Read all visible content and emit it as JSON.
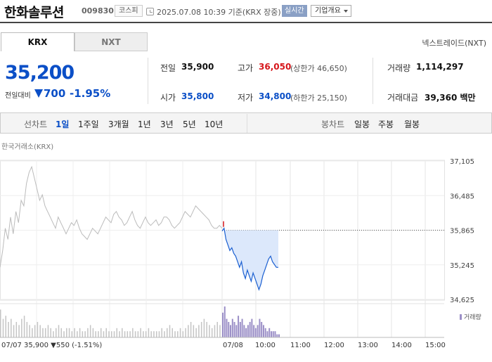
{
  "header": {
    "title": "한화솔루션",
    "code": "009830",
    "market": "코스피",
    "timestamp": "2025.07.08 10:39 기준(KRX 장중)",
    "realtime_label": "실시간",
    "company_label": "기업개요"
  },
  "tabs": [
    {
      "label": "KRX",
      "active": true
    },
    {
      "label": "NXT",
      "active": false
    }
  ],
  "nxt_link": "넥스트레이드(NXT)",
  "price": {
    "current": "35,200",
    "change_label": "전일대비",
    "change": "700",
    "change_pct": "-1.95%",
    "direction": "down"
  },
  "stats": {
    "prev_close": {
      "label": "전일",
      "value": "35,900"
    },
    "open": {
      "label": "시가",
      "value": "35,800"
    },
    "high": {
      "label": "고가",
      "value": "36,050",
      "sub": "(상한가 46,650)"
    },
    "low": {
      "label": "저가",
      "value": "34,800",
      "sub": "(하한가 25,150)"
    },
    "volume": {
      "label": "거래량",
      "value": "1,114,297"
    },
    "amount": {
      "label": "거래대금",
      "value": "39,360 백만"
    }
  },
  "toolbar": {
    "line_chart_label": "선차트",
    "periods": [
      "1일",
      "1주일",
      "3개월",
      "1년",
      "3년",
      "5년",
      "10년"
    ],
    "active_period": "1일",
    "candle_label": "봉차트",
    "candles": [
      "일봉",
      "주봉",
      "월봉"
    ]
  },
  "chart_data": {
    "type": "line",
    "source_label": "한국거래소(KRX)",
    "y_ticks": [
      "37,105",
      "36,485",
      "35,865",
      "35,245",
      "34,625"
    ],
    "ylim": [
      34625,
      37105
    ],
    "reference_line": 35865,
    "x_ticks": [
      "07/08",
      "10:00",
      "11:00",
      "12:00",
      "13:00",
      "14:00",
      "15:00"
    ],
    "prev_day_label": "07/07",
    "prev_day_summary": "35,900 ▼550 (-1.51%)",
    "volume_legend": "거래량",
    "prev_day_series": [
      35200,
      35500,
      35900,
      35700,
      36100,
      35800,
      36200,
      36000,
      36400,
      36300,
      36700,
      36900,
      37000,
      36800,
      36600,
      36400,
      36500,
      36300,
      36200,
      36100,
      36000,
      35900,
      36100,
      36000,
      35900,
      35800,
      35900,
      36000,
      35950,
      36050,
      35900,
      35800,
      35750,
      35700,
      35800,
      35900,
      35850,
      35800,
      35900,
      36000,
      36100,
      36050,
      36000,
      36150,
      36200,
      36100,
      36050,
      35950,
      36000,
      36100,
      36200,
      36050,
      35950,
      35900,
      36000,
      36100,
      36000,
      35950,
      36000,
      36050,
      35950,
      36000,
      36100,
      36100,
      36050,
      35950,
      35900,
      35950,
      36000,
      36100,
      36200,
      36150,
      36100,
      36200,
      36300,
      36250,
      36200,
      36150,
      36100,
      36050,
      35950,
      35900,
      35900,
      35950,
      35900
    ],
    "today_series": [
      35850,
      35900,
      35700,
      35600,
      35500,
      35550,
      35450,
      35400,
      35300,
      35200,
      35300,
      35100,
      35000,
      35150,
      35050,
      34950,
      35100,
      35000,
      34900,
      34800,
      34900,
      35050,
      35150,
      35250,
      35350,
      35400,
      35300,
      35250,
      35200,
      35200
    ],
    "today_volume": [
      8,
      10,
      6,
      5,
      4,
      6,
      5,
      4,
      7,
      5,
      6,
      4,
      3,
      4,
      5,
      6,
      4,
      3,
      4,
      6,
      5,
      4,
      3,
      2,
      3,
      2,
      2,
      2,
      1,
      1
    ],
    "prev_volume": [
      9,
      6,
      7,
      5,
      6,
      4,
      5,
      4,
      6,
      7,
      5,
      4,
      3,
      4,
      5,
      4,
      3,
      3,
      4,
      3,
      2,
      3,
      4,
      3,
      2,
      3,
      3,
      2,
      3,
      2,
      3,
      2,
      2,
      3,
      4,
      3,
      2,
      2,
      3,
      2,
      3,
      2,
      2,
      2,
      3,
      2,
      3,
      2,
      2,
      2,
      3,
      2,
      2,
      3,
      2,
      2,
      3,
      2,
      2,
      2,
      2,
      3,
      2,
      3,
      4,
      3,
      2,
      2,
      3,
      2,
      3,
      4,
      5,
      4,
      3,
      4,
      5,
      6,
      5,
      4,
      3,
      4,
      5,
      4,
      3
    ]
  },
  "colors": {
    "accent": "#0b4fc7",
    "up": "#d6161b",
    "line_prev": "#bbbbbb",
    "line_today": "#1a5fd1",
    "fill_today": "#dce8fb",
    "volume_today": "#9b8fc7"
  }
}
